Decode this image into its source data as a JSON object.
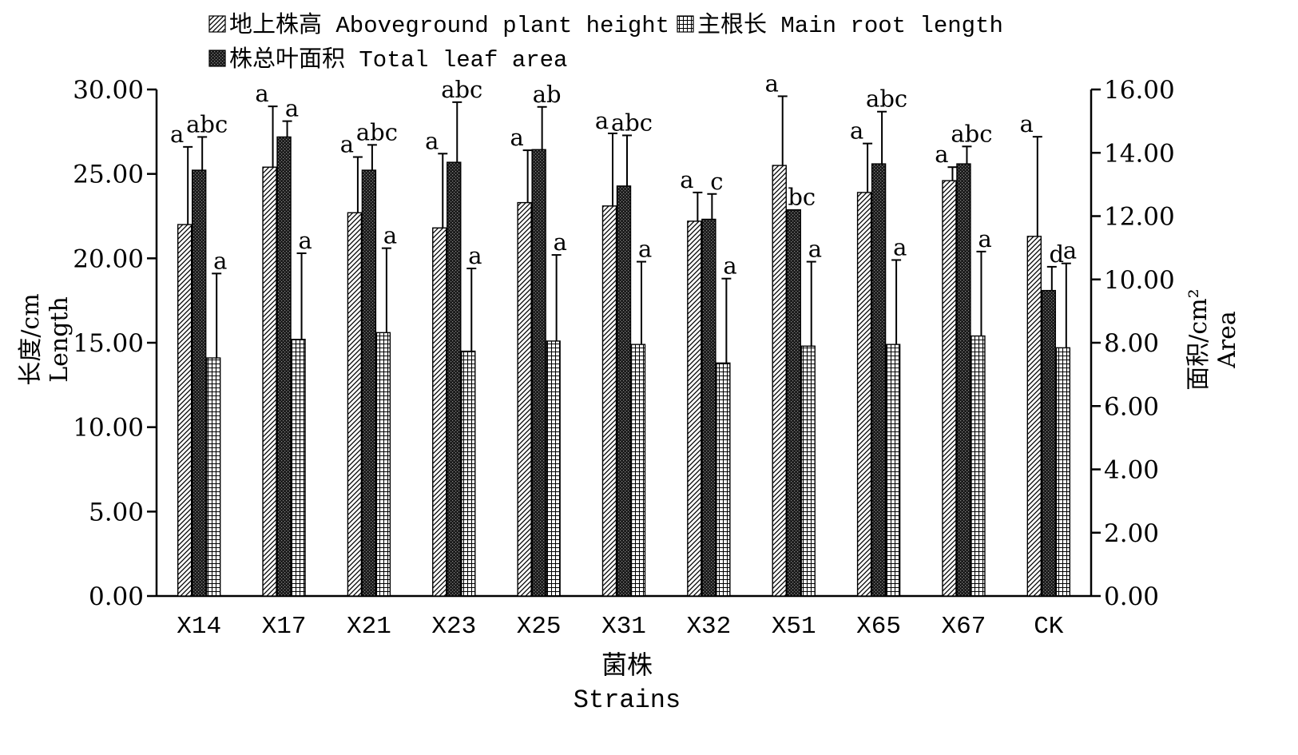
{
  "chart_data": {
    "type": "bar",
    "categories": [
      "X14",
      "X17",
      "X21",
      "X23",
      "X25",
      "X31",
      "X32",
      "X51",
      "X65",
      "X67",
      "CK"
    ],
    "series": [
      {
        "name": "地上株高 Aboveground plant height",
        "axis": "left",
        "pattern": "diagonal",
        "values": [
          22.0,
          25.4,
          22.7,
          21.8,
          23.3,
          23.1,
          22.2,
          25.5,
          23.9,
          24.6,
          21.3
        ],
        "errors": [
          4.6,
          3.6,
          3.3,
          4.4,
          3.1,
          4.3,
          1.7,
          4.1,
          2.9,
          0.8,
          5.9
        ],
        "sig": [
          "a",
          "a",
          "a",
          "a",
          "a",
          "a",
          "a",
          "a",
          "a",
          "a",
          "a"
        ]
      },
      {
        "name": "株总叶面积 Total leaf area",
        "axis": "right",
        "pattern": "dark",
        "values": [
          13.45,
          14.5,
          13.45,
          13.7,
          14.1,
          12.95,
          11.9,
          12.2,
          13.65,
          13.65,
          9.65
        ],
        "errors": [
          1.05,
          0.5,
          0.8,
          1.9,
          1.35,
          1.6,
          0.8,
          0.0,
          1.65,
          0.55,
          0.75
        ],
        "sig": [
          "abc",
          "a",
          "abc",
          "abc",
          "ab",
          "abc",
          "c",
          "bc",
          "abc",
          "abc",
          "d"
        ]
      },
      {
        "name": "主根长 Main root length",
        "axis": "left",
        "pattern": "grid",
        "values": [
          14.1,
          15.2,
          15.6,
          14.5,
          15.1,
          14.9,
          13.8,
          14.8,
          14.9,
          15.4,
          14.7
        ],
        "errors": [
          5.0,
          5.1,
          5.0,
          4.9,
          5.1,
          4.9,
          5.0,
          5.0,
          5.0,
          5.0,
          5.0
        ],
        "sig": [
          "a",
          "a",
          "a",
          "a",
          "a",
          "a",
          "a",
          "a",
          "a",
          "a",
          "a"
        ]
      }
    ],
    "y_left": {
      "label_cn": "长度/cm",
      "label_en": "Length",
      "ylim": [
        0,
        30
      ],
      "ticks": [
        "0.00",
        "5.00",
        "10.00",
        "15.00",
        "20.00",
        "25.00",
        "30.00"
      ]
    },
    "y_right": {
      "label_cn": "面积/cm²",
      "label_en": "Area",
      "ylim": [
        0,
        16
      ],
      "ticks": [
        "0.00",
        "2.00",
        "4.00",
        "6.00",
        "8.00",
        "10.00",
        "12.00",
        "14.00",
        "16.00"
      ]
    },
    "xlabel_cn": "菌株",
    "xlabel_en": "Strains",
    "legend": {
      "placement": "top",
      "entries": [
        "地上株高 Aboveground plant height",
        "主根长 Main root length",
        "株总叶面积 Total leaf area"
      ]
    },
    "grid": false
  }
}
